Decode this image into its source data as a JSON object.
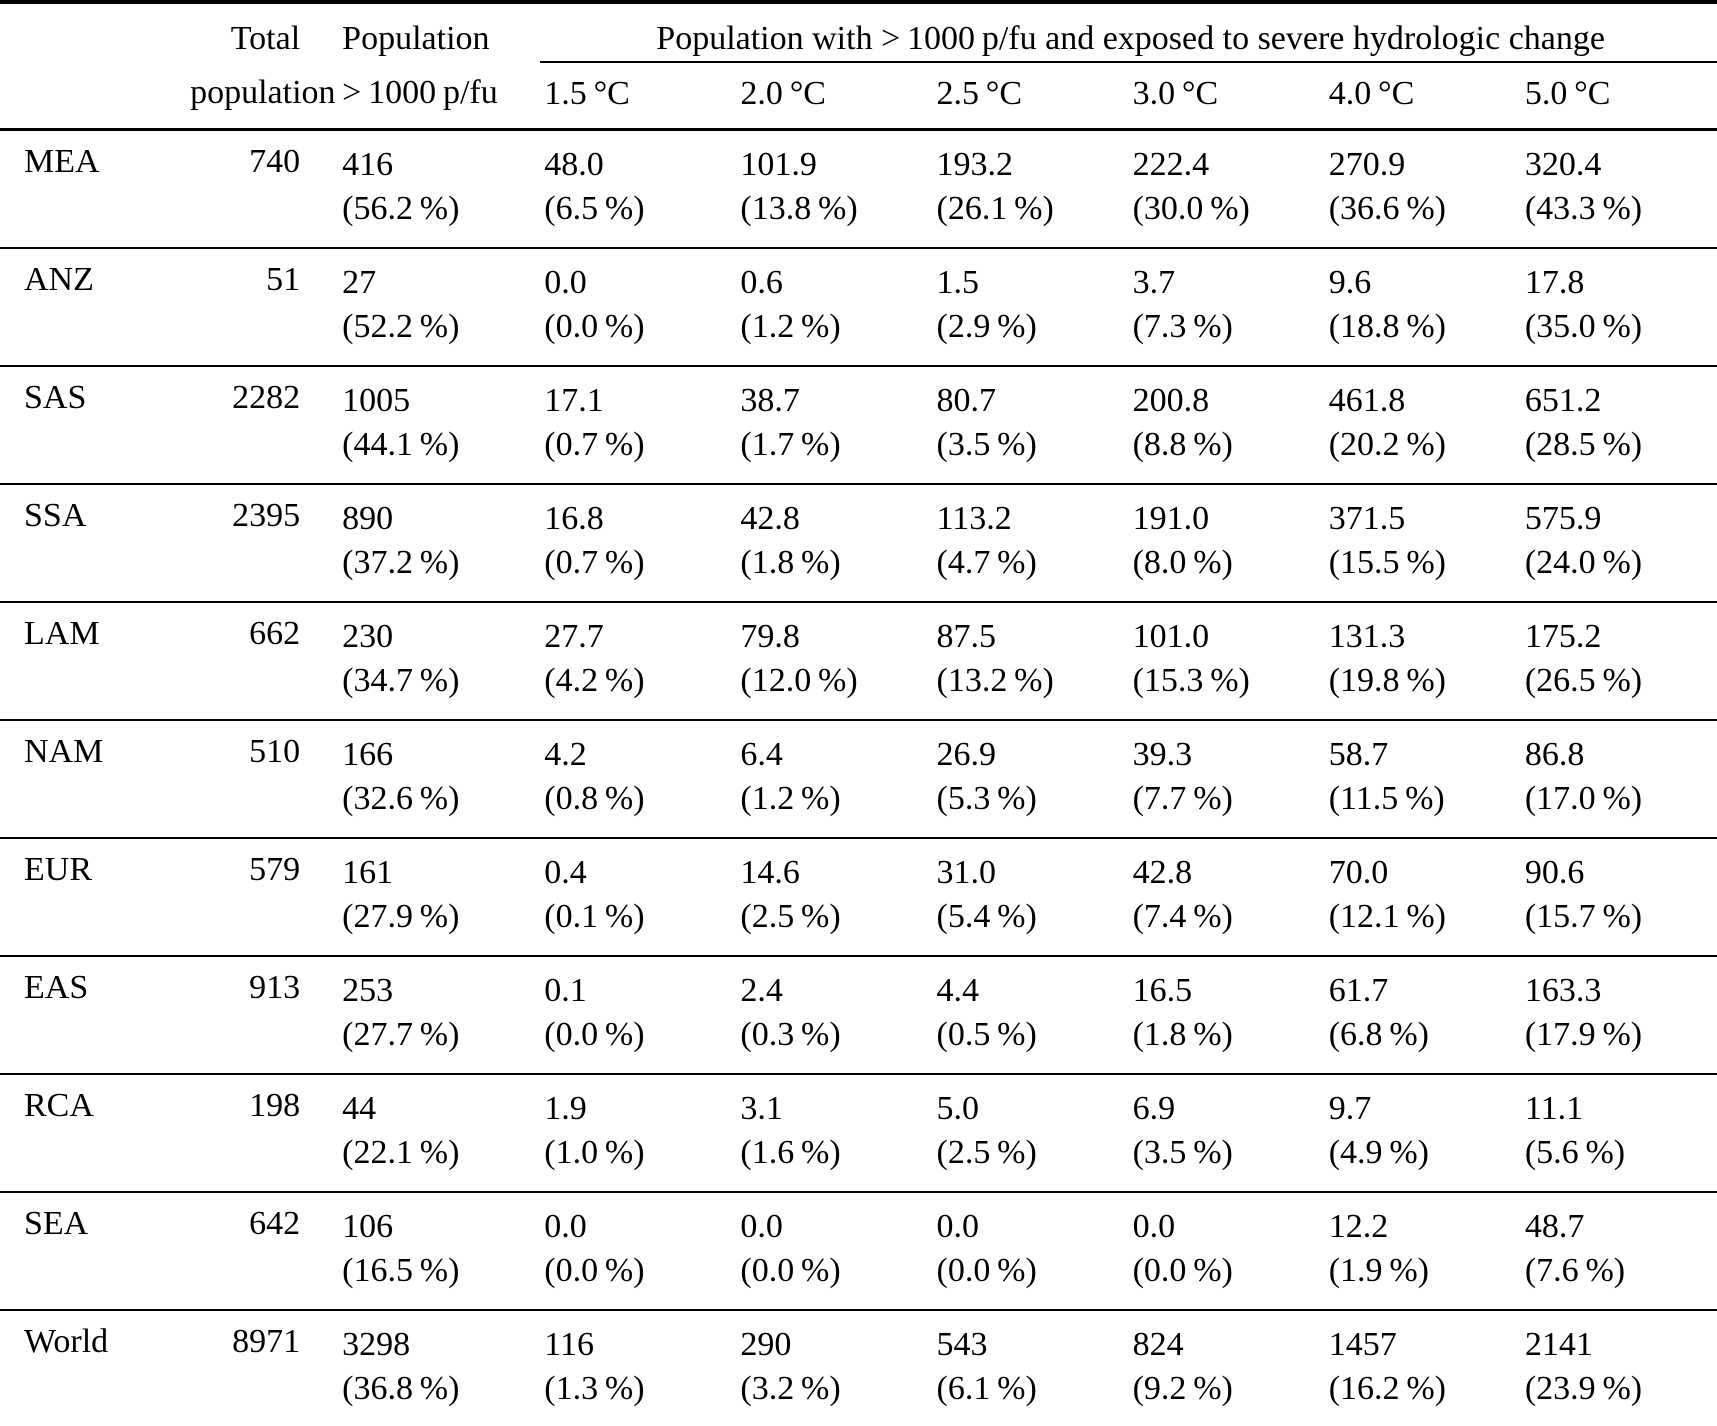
{
  "table": {
    "header": {
      "total_line1": "Total",
      "total_line2": "population",
      "pfu_line1": "Population",
      "pfu_line2": "> 1000 p/fu",
      "span_header": "Population with > 1000 p/fu and exposed to severe hydrologic change",
      "temp_cols": [
        "1.5 °C",
        "2.0 °C",
        "2.5 °C",
        "3.0 °C",
        "4.0 °C",
        "5.0 °C"
      ]
    },
    "rows": [
      {
        "region": "MEA",
        "total": "740",
        "pfu": {
          "v": "416",
          "p": "(56.2 %)"
        },
        "temps": [
          {
            "v": "48.0",
            "p": "(6.5 %)"
          },
          {
            "v": "101.9",
            "p": "(13.8 %)"
          },
          {
            "v": "193.2",
            "p": "(26.1 %)"
          },
          {
            "v": "222.4",
            "p": "(30.0 %)"
          },
          {
            "v": "270.9",
            "p": "(36.6 %)"
          },
          {
            "v": "320.4",
            "p": "(43.3 %)"
          }
        ]
      },
      {
        "region": "ANZ",
        "total": "51",
        "pfu": {
          "v": "27",
          "p": "(52.2 %)"
        },
        "temps": [
          {
            "v": "0.0",
            "p": "(0.0 %)"
          },
          {
            "v": "0.6",
            "p": "(1.2 %)"
          },
          {
            "v": "1.5",
            "p": "(2.9 %)"
          },
          {
            "v": "3.7",
            "p": "(7.3 %)"
          },
          {
            "v": "9.6",
            "p": "(18.8 %)"
          },
          {
            "v": "17.8",
            "p": "(35.0 %)"
          }
        ]
      },
      {
        "region": "SAS",
        "total": "2282",
        "pfu": {
          "v": "1005",
          "p": "(44.1 %)"
        },
        "temps": [
          {
            "v": "17.1",
            "p": "(0.7 %)"
          },
          {
            "v": "38.7",
            "p": "(1.7 %)"
          },
          {
            "v": "80.7",
            "p": "(3.5 %)"
          },
          {
            "v": "200.8",
            "p": "(8.8 %)"
          },
          {
            "v": "461.8",
            "p": "(20.2 %)"
          },
          {
            "v": "651.2",
            "p": "(28.5 %)"
          }
        ]
      },
      {
        "region": "SSA",
        "total": "2395",
        "pfu": {
          "v": "890",
          "p": "(37.2 %)"
        },
        "temps": [
          {
            "v": "16.8",
            "p": "(0.7 %)"
          },
          {
            "v": "42.8",
            "p": "(1.8 %)"
          },
          {
            "v": "113.2",
            "p": "(4.7 %)"
          },
          {
            "v": "191.0",
            "p": "(8.0 %)"
          },
          {
            "v": "371.5",
            "p": "(15.5 %)"
          },
          {
            "v": "575.9",
            "p": "(24.0 %)"
          }
        ]
      },
      {
        "region": "LAM",
        "total": "662",
        "pfu": {
          "v": "230",
          "p": "(34.7 %)"
        },
        "temps": [
          {
            "v": "27.7",
            "p": "(4.2 %)"
          },
          {
            "v": "79.8",
            "p": "(12.0 %)"
          },
          {
            "v": "87.5",
            "p": "(13.2 %)"
          },
          {
            "v": "101.0",
            "p": "(15.3 %)"
          },
          {
            "v": "131.3",
            "p": "(19.8 %)"
          },
          {
            "v": "175.2",
            "p": "(26.5 %)"
          }
        ]
      },
      {
        "region": "NAM",
        "total": "510",
        "pfu": {
          "v": "166",
          "p": "(32.6 %)"
        },
        "temps": [
          {
            "v": "4.2",
            "p": "(0.8 %)"
          },
          {
            "v": "6.4",
            "p": "(1.2 %)"
          },
          {
            "v": "26.9",
            "p": "(5.3 %)"
          },
          {
            "v": "39.3",
            "p": "(7.7 %)"
          },
          {
            "v": "58.7",
            "p": "(11.5 %)"
          },
          {
            "v": "86.8",
            "p": "(17.0 %)"
          }
        ]
      },
      {
        "region": "EUR",
        "total": "579",
        "pfu": {
          "v": "161",
          "p": "(27.9 %)"
        },
        "temps": [
          {
            "v": "0.4",
            "p": "(0.1 %)"
          },
          {
            "v": "14.6",
            "p": "(2.5 %)"
          },
          {
            "v": "31.0",
            "p": "(5.4 %)"
          },
          {
            "v": "42.8",
            "p": "(7.4 %)"
          },
          {
            "v": "70.0",
            "p": "(12.1 %)"
          },
          {
            "v": "90.6",
            "p": "(15.7 %)"
          }
        ]
      },
      {
        "region": "EAS",
        "total": "913",
        "pfu": {
          "v": "253",
          "p": "(27.7 %)"
        },
        "temps": [
          {
            "v": "0.1",
            "p": "(0.0 %)"
          },
          {
            "v": "2.4",
            "p": "(0.3 %)"
          },
          {
            "v": "4.4",
            "p": "(0.5 %)"
          },
          {
            "v": "16.5",
            "p": "(1.8 %)"
          },
          {
            "v": "61.7",
            "p": "(6.8 %)"
          },
          {
            "v": "163.3",
            "p": "(17.9 %)"
          }
        ]
      },
      {
        "region": "RCA",
        "total": "198",
        "pfu": {
          "v": "44",
          "p": "(22.1 %)"
        },
        "temps": [
          {
            "v": "1.9",
            "p": "(1.0 %)"
          },
          {
            "v": "3.1",
            "p": "(1.6 %)"
          },
          {
            "v": "5.0",
            "p": "(2.5 %)"
          },
          {
            "v": "6.9",
            "p": "(3.5 %)"
          },
          {
            "v": "9.7",
            "p": "(4.9 %)"
          },
          {
            "v": "11.1",
            "p": "(5.6 %)"
          }
        ]
      },
      {
        "region": "SEA",
        "total": "642",
        "pfu": {
          "v": "106",
          "p": "(16.5 %)"
        },
        "temps": [
          {
            "v": "0.0",
            "p": "(0.0 %)"
          },
          {
            "v": "0.0",
            "p": "(0.0 %)"
          },
          {
            "v": "0.0",
            "p": "(0.0 %)"
          },
          {
            "v": "0.0",
            "p": "(0.0 %)"
          },
          {
            "v": "12.2",
            "p": "(1.9 %)"
          },
          {
            "v": "48.7",
            "p": "(7.6 %)"
          }
        ]
      },
      {
        "region": "World",
        "total": "8971",
        "pfu": {
          "v": "3298",
          "p": "(36.8 %)"
        },
        "temps": [
          {
            "v": "116",
            "p": "(1.3 %)"
          },
          {
            "v": "290",
            "p": "(3.2 %)"
          },
          {
            "v": "543",
            "p": "(6.1 %)"
          },
          {
            "v": "824",
            "p": "(9.2 %)"
          },
          {
            "v": "1457",
            "p": "(16.2 %)"
          },
          {
            "v": "2141",
            "p": "(23.9 %)"
          }
        ]
      }
    ]
  }
}
